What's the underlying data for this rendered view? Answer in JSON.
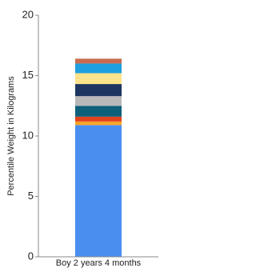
{
  "chart_data": {
    "type": "stacked_bar",
    "y_label": "Percentile Weight in Kilograms",
    "categories": [
      "Boy 2 years 4 months"
    ],
    "series": [
      {
        "color": "#4a8ff0",
        "values": [
          10.9
        ]
      },
      {
        "color": "#f6a52a",
        "values": [
          0.3
        ]
      },
      {
        "color": "#e2431d",
        "values": [
          0.4
        ]
      },
      {
        "color": "#0f607a",
        "values": [
          0.9
        ]
      },
      {
        "color": "#b9b9b9",
        "values": [
          0.8
        ]
      },
      {
        "color": "#1c3561",
        "values": [
          1.0
        ]
      },
      {
        "color": "#fde38b",
        "values": [
          0.9
        ]
      },
      {
        "color": "#1f9fdf",
        "values": [
          0.8
        ]
      },
      {
        "color": "#c96b4c",
        "values": [
          0.4
        ]
      }
    ],
    "ylim": [
      0,
      20
    ],
    "yticks": [
      0,
      5,
      10,
      15,
      20
    ],
    "grid": false
  }
}
